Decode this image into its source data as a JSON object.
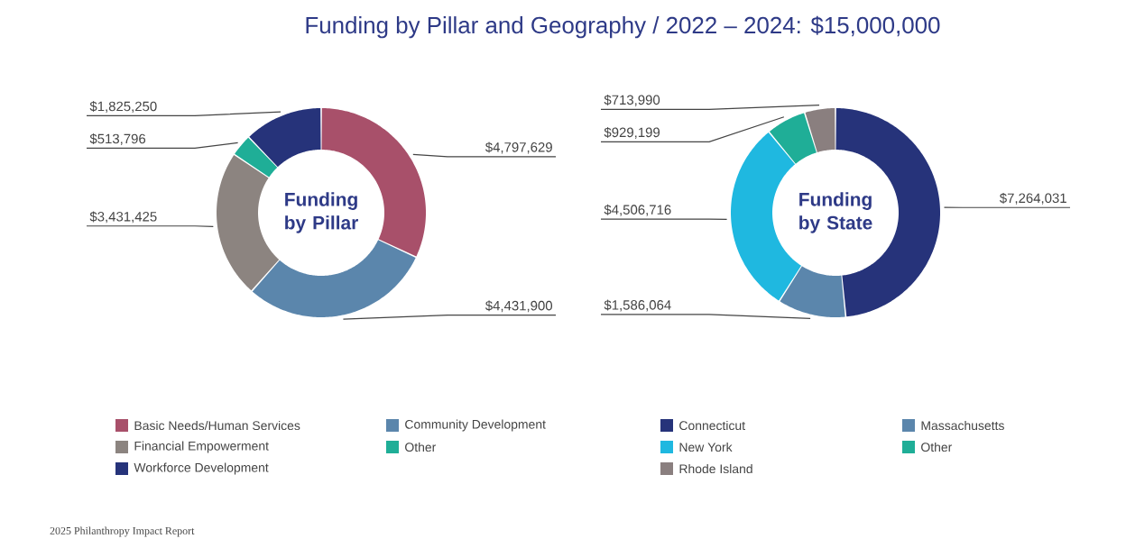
{
  "chart_data": [
    {
      "type": "donut",
      "title": "Funding by Pillar",
      "annotations": [
        "Funding by Pillar and Geography / 2022 – 2024: $15,000,000",
        "2025 Philanthropy Impact Report"
      ],
      "categories": [
        "Basic Needs/Human Services",
        "Community Development",
        "Financial Empowerment",
        "Other",
        "Workforce Development"
      ],
      "values": [
        4797629,
        4431900,
        3431425,
        513796,
        1825250
      ],
      "colors": [
        "#a8506a",
        "#5b86ac",
        "#8c8480",
        "#1fae97",
        "#26337a"
      ],
      "value_labels": [
        "$4,797,629",
        "$4,431,900",
        "$3,431,425",
        "$513,796",
        "$1,825,250"
      ],
      "legend": "bottom"
    },
    {
      "type": "donut",
      "title": "Funding by State",
      "categories": [
        "Connecticut",
        "Massachusetts",
        "New York",
        "Other",
        "Rhode Island"
      ],
      "values": [
        7264031,
        1586064,
        4506716,
        929199,
        713990
      ],
      "colors": [
        "#26337a",
        "#5b86ac",
        "#1fb8e0",
        "#1fae97",
        "#8a7f7f"
      ],
      "value_labels": [
        "$7,264,031",
        "$1,586,064",
        "$4,506,716",
        "$929,199",
        "$713,990"
      ],
      "legend": "bottom"
    }
  ]
}
